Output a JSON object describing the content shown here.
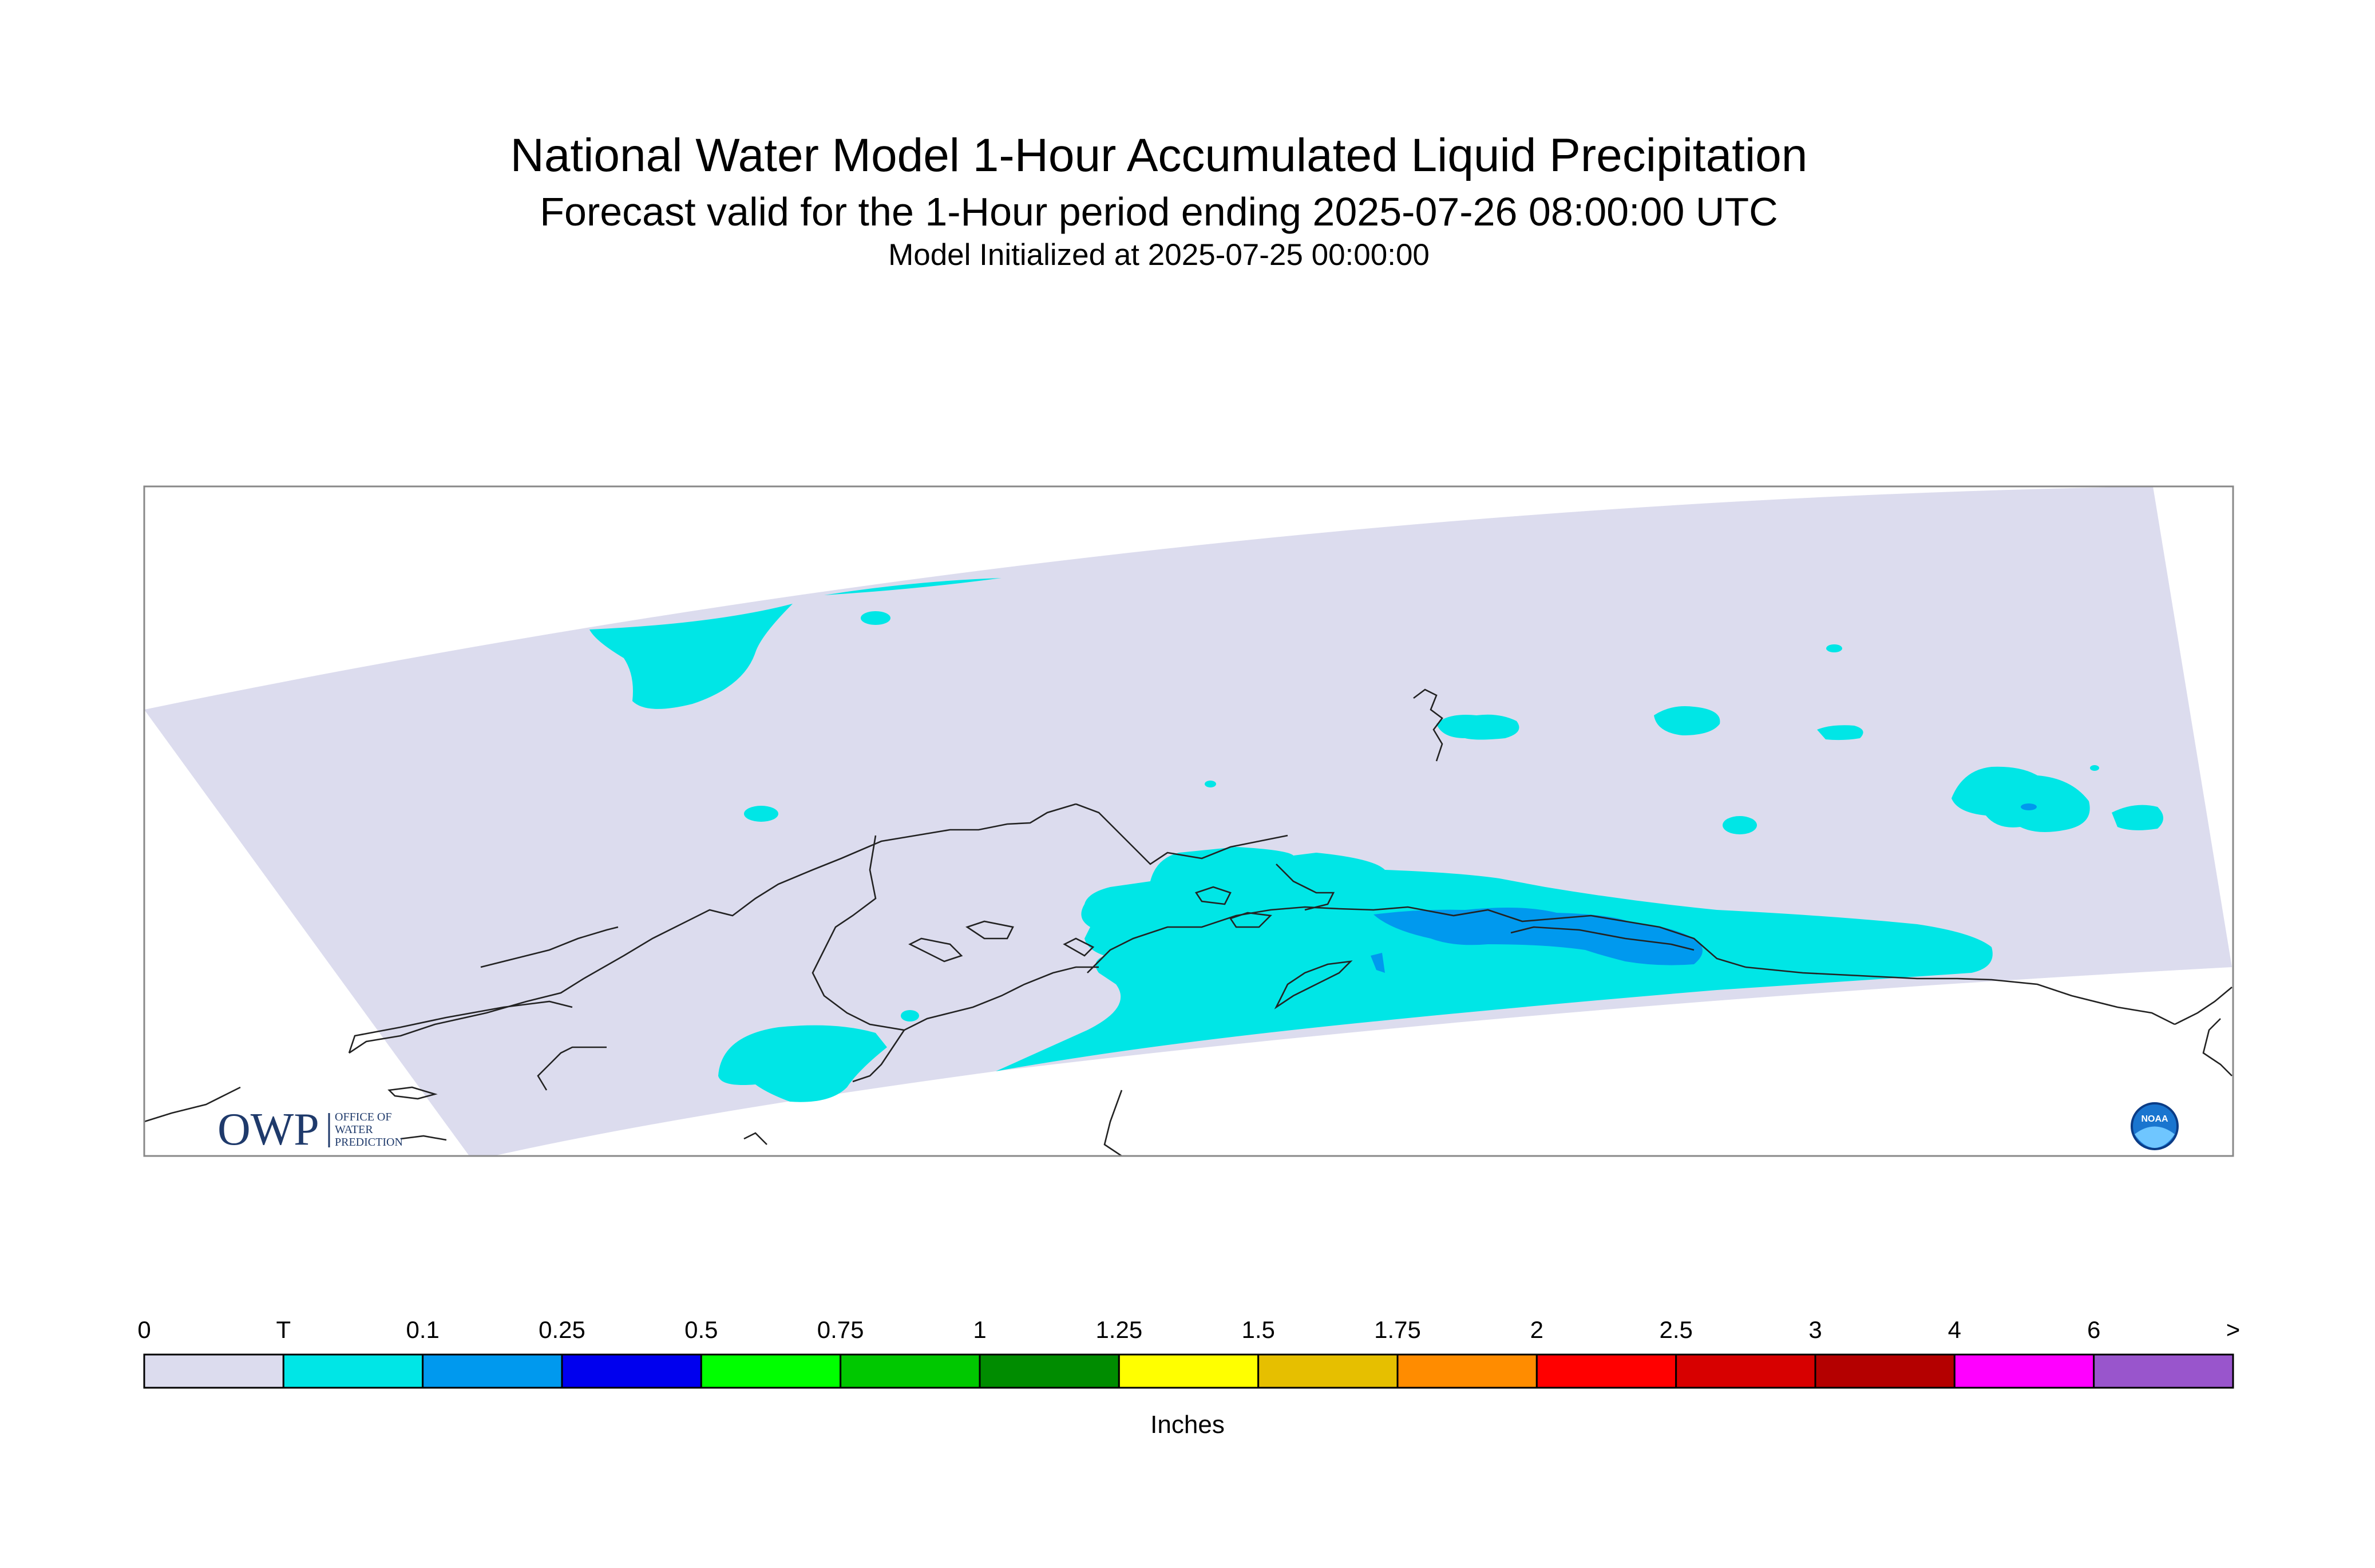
{
  "title": "National Water Model 1-Hour Accumulated Liquid Precipitation",
  "subtitle": "Forecast valid for the 1-Hour period ending 2025-07-26 08:00:00 UTC",
  "init_line": "Model Initialized at 2025-07-25 00:00:00",
  "colorbar": {
    "units": "Inches",
    "labels": [
      "0",
      "T",
      "0.1",
      "0.25",
      "0.5",
      "0.75",
      "1",
      "1.25",
      "1.5",
      "1.75",
      "2",
      "2.5",
      "3",
      "4",
      "6",
      ">"
    ],
    "colors": [
      "#dcdcee",
      "#00e6e6",
      "#0099ee",
      "#0000ee",
      "#00ff00",
      "#00c800",
      "#008c00",
      "#ffff00",
      "#e6bf00",
      "#ff8c00",
      "#ff0000",
      "#d70000",
      "#b40000",
      "#ff00ff",
      "#9955cc"
    ]
  },
  "logos": {
    "owp_text": "OWP",
    "owp_sub": [
      "OFFICE OF",
      "WATER",
      "PREDICTION"
    ],
    "noaa_text": "NOAA"
  }
}
